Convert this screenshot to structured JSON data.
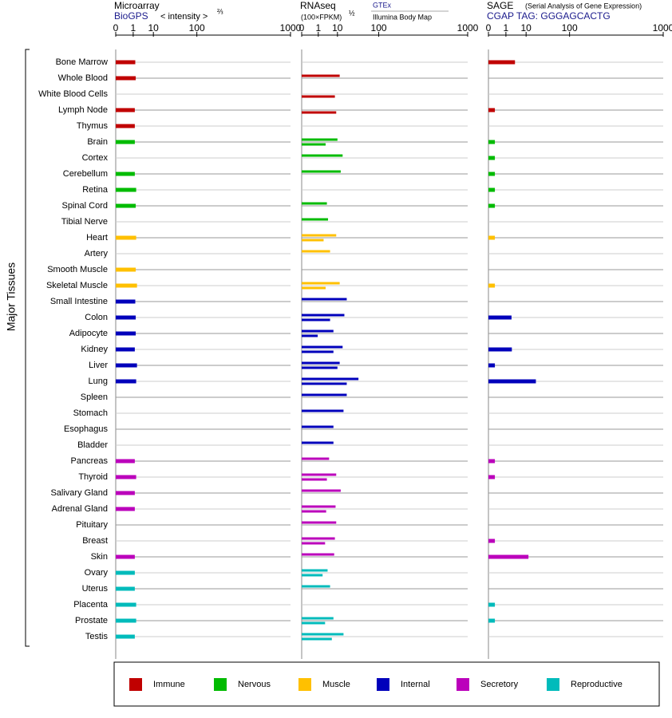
{
  "chart_data": {
    "type": "bar",
    "ylabel": "Major Tissues",
    "categories": [
      "Bone Marrow",
      "Whole Blood",
      "White Blood Cells",
      "Lymph Node",
      "Thymus",
      "Brain",
      "Cortex",
      "Cerebellum",
      "Retina",
      "Spinal Cord",
      "Tibial Nerve",
      "Heart",
      "Artery",
      "Smooth Muscle",
      "Skeletal Muscle",
      "Small Intestine",
      "Colon",
      "Adipocyte",
      "Kidney",
      "Liver",
      "Lung",
      "Spleen",
      "Stomach",
      "Esophagus",
      "Bladder",
      "Pancreas",
      "Thyroid",
      "Salivary Gland",
      "Adrenal Gland",
      "Pituitary",
      "Breast",
      "Skin",
      "Ovary",
      "Uterus",
      "Placenta",
      "Prostate",
      "Testis"
    ],
    "category_groups": [
      "Immune",
      "Immune",
      "Immune",
      "Immune",
      "Immune",
      "Nervous",
      "Nervous",
      "Nervous",
      "Nervous",
      "Nervous",
      "Nervous",
      "Muscle",
      "Muscle",
      "Muscle",
      "Muscle",
      "Internal",
      "Internal",
      "Internal",
      "Internal",
      "Internal",
      "Internal",
      "Internal",
      "Internal",
      "Internal",
      "Internal",
      "Secretory",
      "Secretory",
      "Secretory",
      "Secretory",
      "Secretory",
      "Secretory",
      "Secretory",
      "Reproductive",
      "Reproductive",
      "Reproductive",
      "Reproductive",
      "Reproductive"
    ],
    "legend": [
      {
        "name": "Immune",
        "color": "#c00000"
      },
      {
        "name": "Nervous",
        "color": "#00bb00"
      },
      {
        "name": "Muscle",
        "color": "#ffc000"
      },
      {
        "name": "Internal",
        "color": "#0000bb"
      },
      {
        "name": "Secretory",
        "color": "#bb00bb"
      },
      {
        "name": "Reproductive",
        "color": "#00bbbb"
      }
    ],
    "panels": [
      {
        "title": "Microarray",
        "unit": "< intensity >",
        "unit_power": "⅔",
        "xlim": [
          0,
          1000
        ],
        "xticks": [
          0,
          1,
          10,
          100,
          1000
        ],
        "series": [
          {
            "name": "BioGPS",
            "values": [
              1.4,
              1.5,
              null,
              1.3,
              1.3,
              1.3,
              null,
              1.3,
              1.6,
              1.5,
              null,
              1.6,
              null,
              1.5,
              1.8,
              1.4,
              1.5,
              1.5,
              1.3,
              1.8,
              1.6,
              null,
              null,
              null,
              null,
              1.3,
              1.6,
              1.3,
              1.3,
              null,
              null,
              1.3,
              1.3,
              1.3,
              1.6,
              1.6,
              1.3
            ]
          }
        ]
      },
      {
        "title": "RNAseq",
        "unit": "(100×FPKM)",
        "unit_power": "½",
        "xlim": [
          0,
          1000
        ],
        "xticks": [
          0,
          1,
          10,
          100,
          1000
        ],
        "series": [
          {
            "name": "GTEx",
            "values": [
              null,
              12,
              null,
              null,
              null,
              10,
              15,
              13,
              null,
              3.5,
              4,
              9,
              5,
              null,
              12,
              20,
              17,
              7,
              15,
              12,
              40,
              20,
              16,
              7,
              7,
              4.5,
              9,
              13,
              8.5,
              9,
              8,
              7.5,
              3.8,
              5,
              null,
              7,
              16
            ]
          },
          {
            "name": "Illumina Body Map",
            "values": [
              null,
              null,
              8,
              9,
              null,
              3,
              null,
              null,
              null,
              null,
              null,
              2.3,
              null,
              null,
              3,
              null,
              5,
              0.9,
              7,
              10,
              20,
              null,
              null,
              null,
              null,
              null,
              3.5,
              null,
              3.2,
              null,
              2.8,
              null,
              2,
              null,
              null,
              2.8,
              6
            ]
          }
        ]
      },
      {
        "title": "SAGE",
        "subtitle": "(Serial Analysis of Gene Expression)",
        "xlim": [
          0,
          1000
        ],
        "xticks": [
          0,
          1,
          10,
          100,
          1000
        ],
        "series": [
          {
            "name": "CGAP TAG: GGGAGCACTG",
            "values": [
              3.5,
              null,
              null,
              0.05,
              null,
              0.05,
              0.05,
              0.05,
              0.05,
              0.05,
              null,
              0.05,
              null,
              null,
              0.05,
              null,
              2.3,
              null,
              2.4,
              0.05,
              20,
              null,
              null,
              null,
              null,
              0.05,
              0.05,
              null,
              null,
              null,
              0.05,
              12,
              null,
              null,
              0.05,
              0.05,
              null
            ]
          }
        ]
      }
    ]
  }
}
